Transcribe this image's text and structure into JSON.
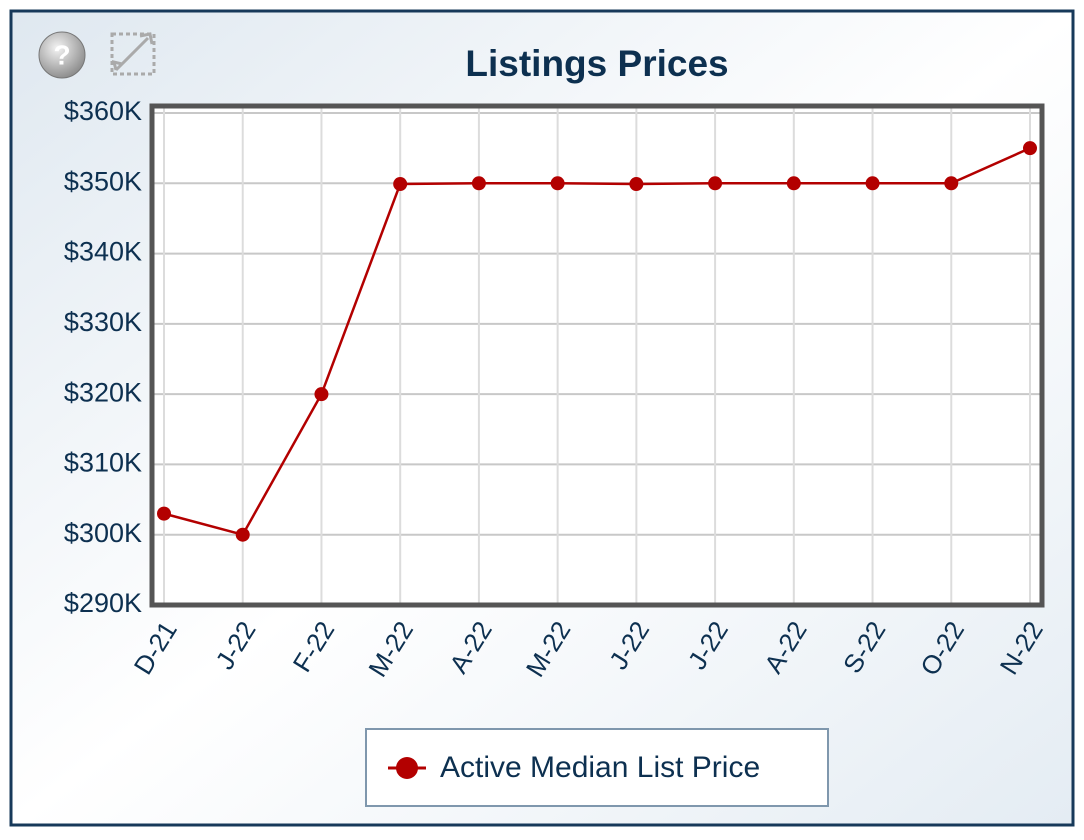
{
  "chart_data": {
    "type": "line",
    "title": "Listings Prices",
    "categories": [
      "D-21",
      "J-22",
      "F-22",
      "M-22",
      "A-22",
      "M-22",
      "J-22",
      "J-22",
      "A-22",
      "S-22",
      "O-22",
      "N-22"
    ],
    "series": [
      {
        "name": "Active Median List Price",
        "color": "#b30000",
        "values": [
          303000,
          300000,
          320000,
          349900,
          350000,
          350000,
          349900,
          350000,
          350000,
          350000,
          350000,
          355000
        ]
      }
    ],
    "ylim": [
      290000,
      361000
    ],
    "yticks": [
      {
        "value": 290000,
        "label": "$290K"
      },
      {
        "value": 300000,
        "label": "$300K"
      },
      {
        "value": 310000,
        "label": "$310K"
      },
      {
        "value": 320000,
        "label": "$320K"
      },
      {
        "value": 330000,
        "label": "$330K"
      },
      {
        "value": 340000,
        "label": "$340K"
      },
      {
        "value": 350000,
        "label": "$350K"
      },
      {
        "value": 360000,
        "label": "$360K"
      }
    ],
    "grid": true
  }
}
